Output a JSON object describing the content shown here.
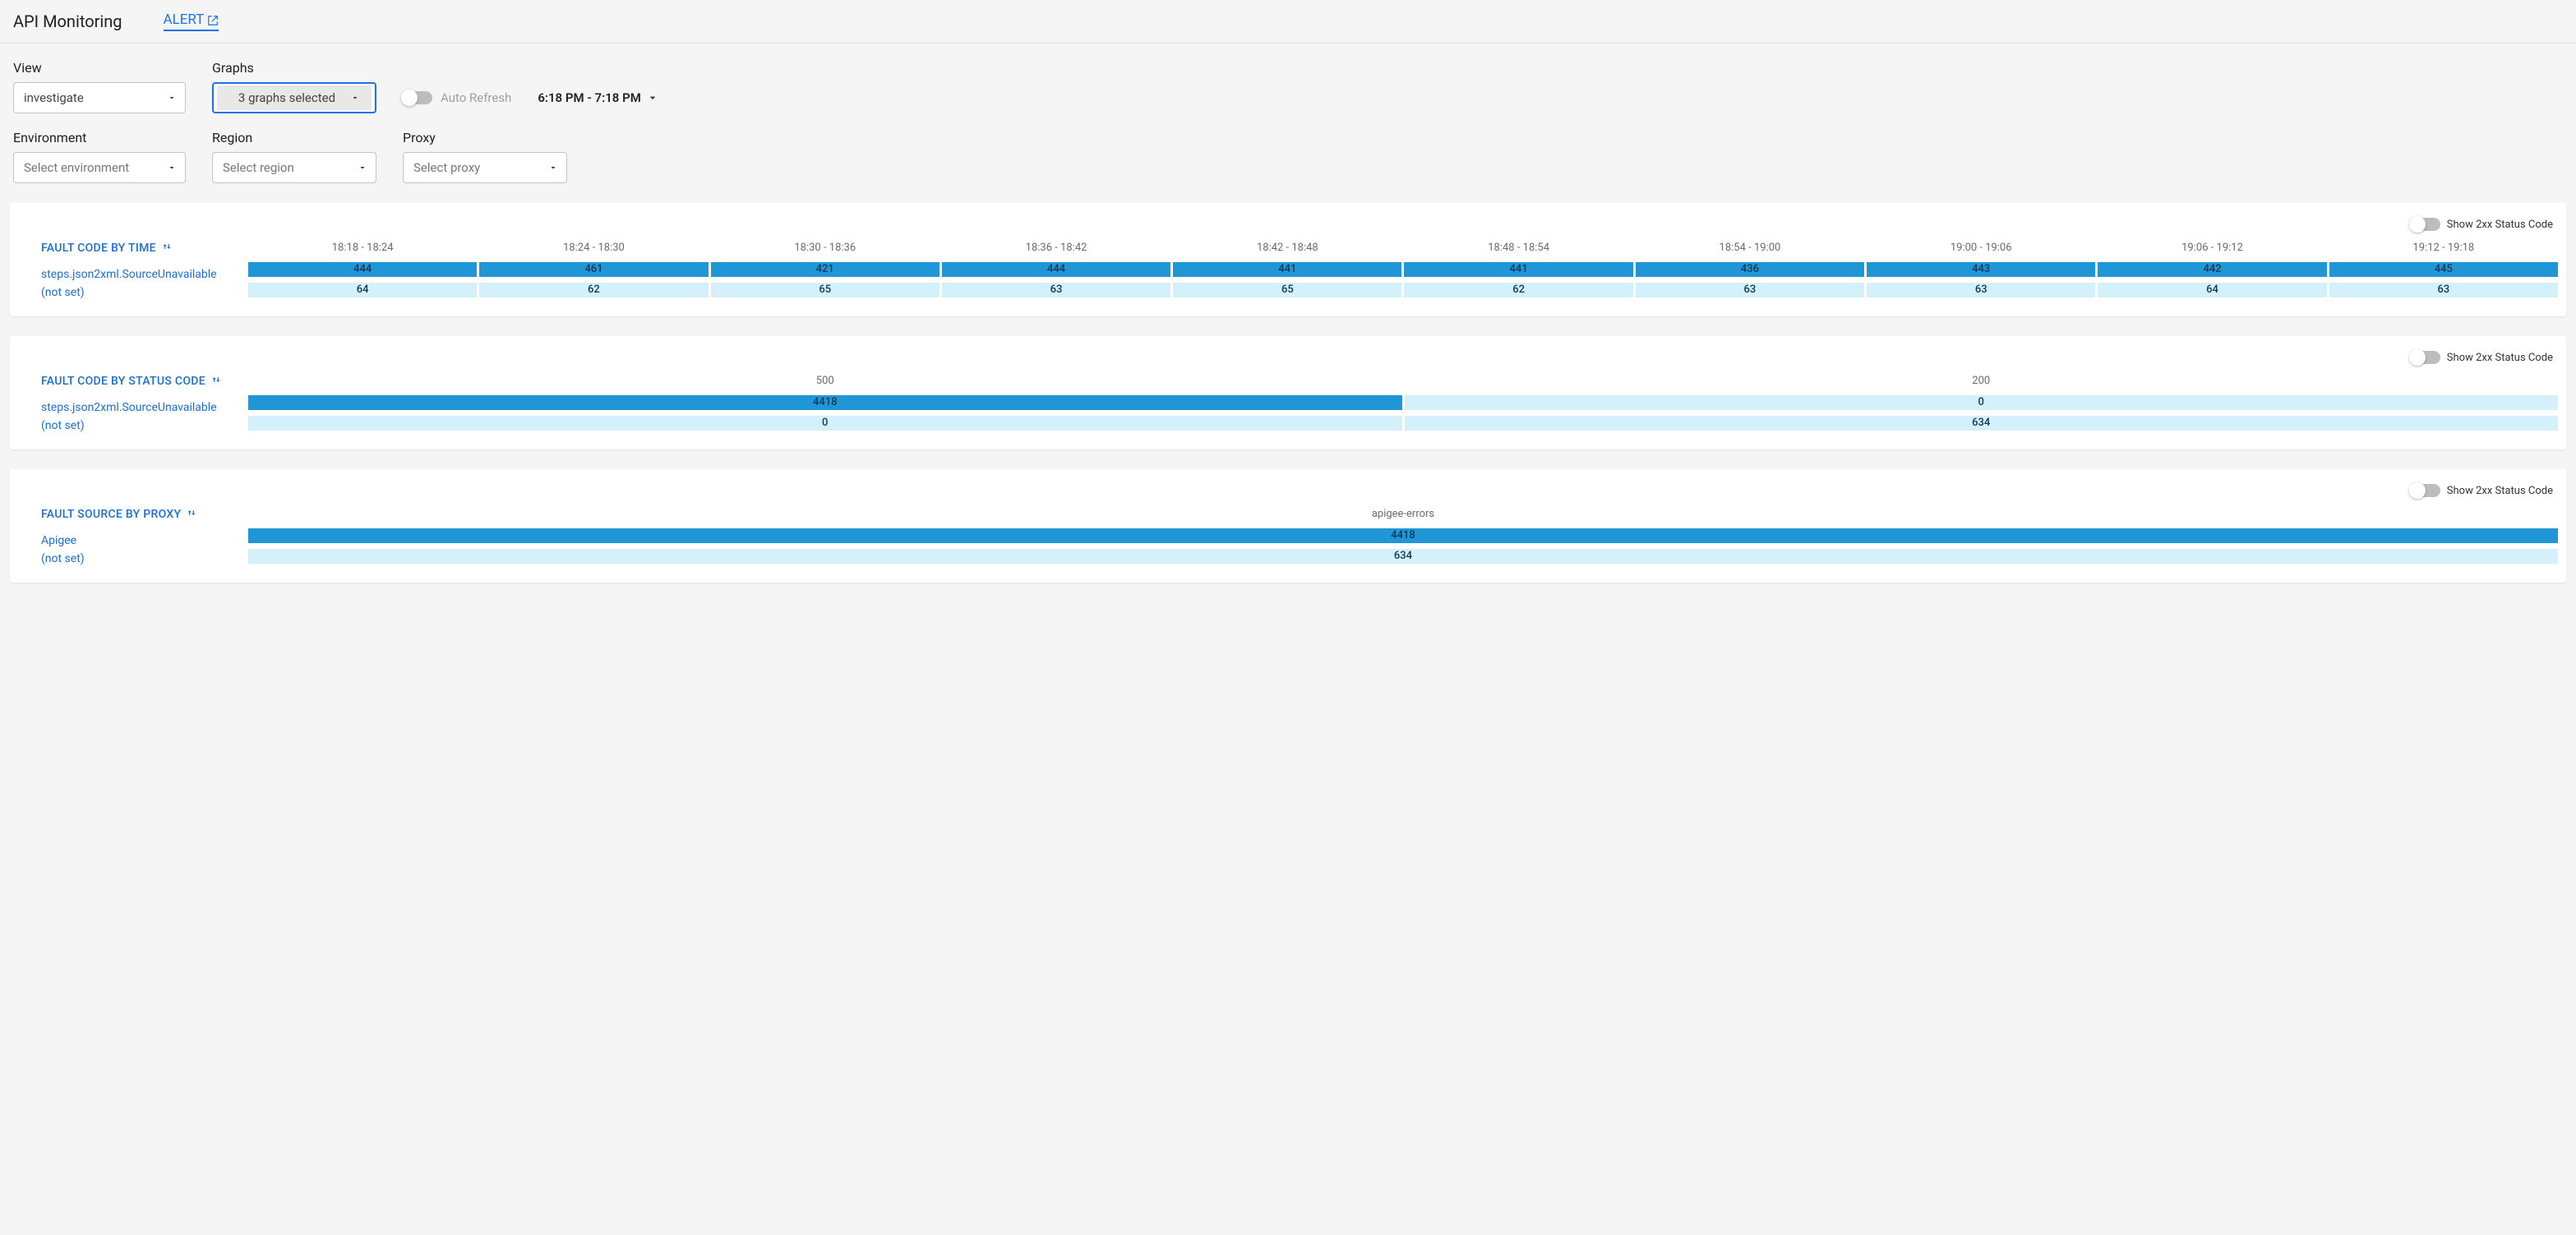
{
  "colors": {
    "link": "#1a73e8",
    "panel_title": "#1a6fd6",
    "cell_dark_bg": "#2196d6",
    "cell_dark_fg": "#0b3a57",
    "cell_light_bg": "#d4f1fb",
    "cell_light_fg": "#0b3a57",
    "header_fg": "#6b6b6b",
    "page_bg": "#f5f5f5"
  },
  "header": {
    "title": "API Monitoring",
    "alert_link": "ALERT"
  },
  "controls": {
    "view": {
      "label": "View",
      "value": "investigate"
    },
    "graphs": {
      "label": "Graphs",
      "value": "3 graphs selected"
    },
    "auto_refresh": {
      "label": "Auto Refresh",
      "on": false
    },
    "time_range": "6:18 PM - 7:18 PM",
    "environment": {
      "label": "Environment",
      "placeholder": "Select environment"
    },
    "region": {
      "label": "Region",
      "placeholder": "Select region"
    },
    "proxy": {
      "label": "Proxy",
      "placeholder": "Select proxy"
    }
  },
  "toggles": {
    "show2xx_label": "Show 2xx Status Code"
  },
  "panels": [
    {
      "title": "FAULT CODE BY TIME",
      "columns": [
        "18:18 - 18:24",
        "18:24 - 18:30",
        "18:30 - 18:36",
        "18:36 - 18:42",
        "18:42 - 18:48",
        "18:48 - 18:54",
        "18:54 - 19:00",
        "19:00 - 19:06",
        "19:06 - 19:12",
        "19:12 - 19:18"
      ],
      "rows": [
        {
          "label": "steps.json2xml.SourceUnavailable",
          "values": [
            444,
            461,
            421,
            444,
            441,
            441,
            436,
            443,
            442,
            445
          ],
          "style": "dark"
        },
        {
          "label": "(not set)",
          "values": [
            64,
            62,
            65,
            63,
            65,
            62,
            63,
            63,
            64,
            63
          ],
          "style": "light"
        }
      ]
    },
    {
      "title": "FAULT CODE BY STATUS CODE",
      "columns": [
        "500",
        "200"
      ],
      "rows": [
        {
          "label": "steps.json2xml.SourceUnavailable",
          "values": [
            4418,
            0
          ],
          "styles": [
            "dark",
            "light"
          ]
        },
        {
          "label": "(not set)",
          "values": [
            0,
            634
          ],
          "styles": [
            "light",
            "light"
          ]
        }
      ]
    },
    {
      "title": "FAULT SOURCE BY PROXY",
      "columns": [
        "apigee-errors"
      ],
      "rows": [
        {
          "label": "Apigee",
          "values": [
            4418
          ],
          "style": "dark"
        },
        {
          "label": "(not set)",
          "values": [
            634
          ],
          "style": "light"
        }
      ]
    }
  ]
}
